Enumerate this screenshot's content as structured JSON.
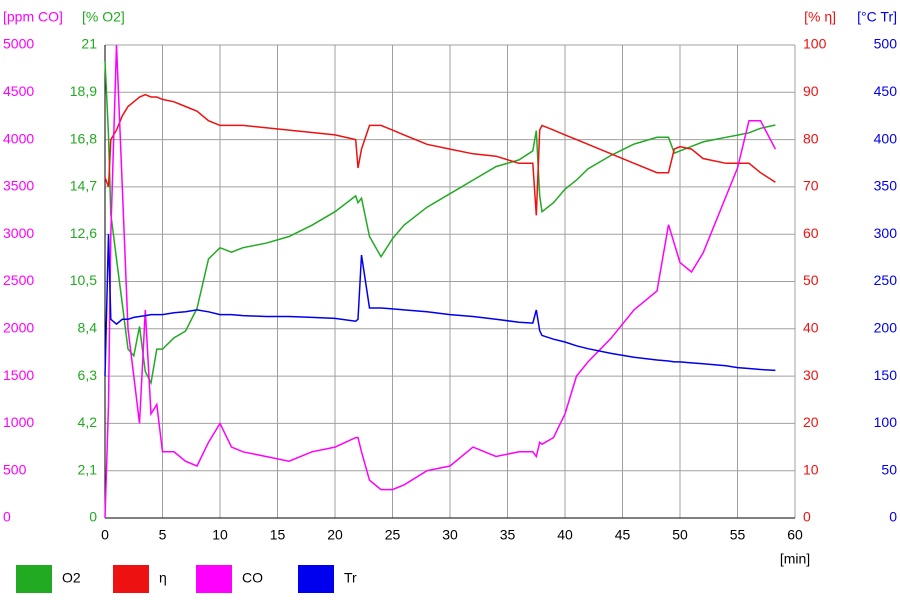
{
  "chart_data": {
    "type": "line",
    "xlabel": "[min]",
    "x": [
      0,
      0.3,
      0.5,
      1,
      1.5,
      2,
      2.5,
      3,
      3.5,
      4,
      4.5,
      5,
      6,
      7,
      8,
      9,
      10,
      11,
      12,
      14,
      16,
      18,
      20,
      21.8,
      22,
      22.3,
      23,
      24,
      25,
      26,
      28,
      30,
      32,
      34,
      36,
      37.2,
      37.5,
      37.8,
      38,
      39,
      40,
      41,
      42,
      44,
      46,
      48,
      49,
      49.5,
      50,
      51,
      52,
      54,
      55,
      56,
      57,
      58.3
    ],
    "xlim": [
      0,
      60
    ],
    "xticks": [
      0,
      5,
      10,
      15,
      20,
      25,
      30,
      35,
      40,
      45,
      50,
      55,
      60
    ],
    "ylabel": "[ppm CO]",
    "ylim": [
      0,
      5000
    ],
    "yticks": [
      0,
      500,
      1000,
      1500,
      2000,
      2500,
      3000,
      3500,
      4000,
      4500,
      5000
    ],
    "y2label": "[% O2]",
    "y2lim": [
      0,
      21
    ],
    "y2ticks": [
      0,
      {
        "value": 2.1,
        "label": "2,1"
      },
      {
        "value": 4.2,
        "label": "4,2"
      },
      {
        "value": 6.3,
        "label": "6,3"
      },
      {
        "value": 8.4,
        "label": "8,4"
      },
      {
        "value": 10.5,
        "label": "10,5"
      },
      {
        "value": 12.6,
        "label": "12,6"
      },
      {
        "value": 14.7,
        "label": "14,7"
      },
      {
        "value": 16.8,
        "label": "16,8"
      },
      {
        "value": 18.9,
        "label": "18,9"
      },
      21
    ],
    "y3label": "[% η]",
    "y3lim": [
      0,
      100
    ],
    "y3ticks": [
      0,
      10,
      20,
      30,
      40,
      50,
      60,
      70,
      80,
      90,
      100
    ],
    "y4label": "[°C Tr]",
    "y4lim": [
      0,
      500
    ],
    "y4ticks": [
      0,
      50,
      100,
      150,
      200,
      250,
      300,
      350,
      400,
      450,
      500
    ],
    "grid": true,
    "series": [
      {
        "name": "O2",
        "color": "#22aa22",
        "axis": "y2",
        "values": [
          20.3,
          17,
          13.5,
          11.5,
          9.5,
          7.5,
          7.2,
          8.5,
          6.5,
          6.0,
          7.5,
          7.5,
          8.0,
          8.3,
          9.3,
          11.5,
          12.0,
          11.8,
          12.0,
          12.2,
          12.5,
          13.0,
          13.6,
          14.3,
          14.0,
          14.2,
          12.5,
          11.6,
          12.4,
          13.0,
          13.8,
          14.4,
          15.0,
          15.6,
          15.9,
          16.3,
          17.2,
          14.3,
          13.6,
          14.0,
          14.6,
          15.0,
          15.5,
          16.1,
          16.6,
          16.9,
          16.9,
          16.2,
          16.3,
          16.5,
          16.7,
          16.9,
          17.0,
          17.1,
          17.3,
          17.45
        ]
      },
      {
        "name": "η",
        "color": "#ee1111",
        "axis": "y3",
        "values": [
          72,
          70,
          80,
          82,
          85,
          87,
          88,
          89,
          89.5,
          89,
          89,
          88.5,
          88,
          87,
          86,
          84,
          83,
          83,
          83,
          82.5,
          82,
          81.5,
          81,
          80,
          74,
          78,
          83,
          83,
          82,
          81,
          79,
          78,
          77,
          76.5,
          75,
          75,
          64,
          82,
          83,
          82,
          81,
          80,
          79,
          77,
          75,
          73,
          73,
          78,
          78.5,
          78,
          76,
          75,
          75,
          75,
          73,
          71
        ]
      },
      {
        "name": "CO",
        "color": "#ff00ff",
        "axis": "y",
        "values": [
          0,
          1200,
          3000,
          5000,
          3500,
          2000,
          1500,
          1000,
          2200,
          1100,
          1200,
          700,
          700,
          600,
          550,
          800,
          1000,
          750,
          700,
          650,
          600,
          700,
          750,
          850,
          850,
          700,
          400,
          300,
          300,
          350,
          500,
          550,
          750,
          650,
          700,
          700,
          650,
          800,
          780,
          850,
          1100,
          1500,
          1650,
          1900,
          2200,
          2400,
          3100,
          2900,
          2700,
          2600,
          2800,
          3400,
          3700,
          4200,
          4200,
          3900
        ]
      },
      {
        "name": "Tr",
        "color": "#0000ee",
        "axis": "y4",
        "values": [
          150,
          300,
          210,
          205,
          210,
          210,
          212,
          213,
          214,
          215,
          215,
          215,
          217,
          218,
          220,
          218,
          215,
          215,
          214,
          213,
          213,
          212,
          211,
          208,
          210,
          278,
          222,
          222,
          221,
          220,
          218,
          215,
          213,
          210,
          207,
          206,
          220,
          198,
          193,
          189,
          186,
          182,
          179,
          174,
          170,
          167,
          166,
          165,
          165,
          164,
          163,
          161,
          159,
          158,
          157,
          156
        ]
      }
    ]
  }
}
